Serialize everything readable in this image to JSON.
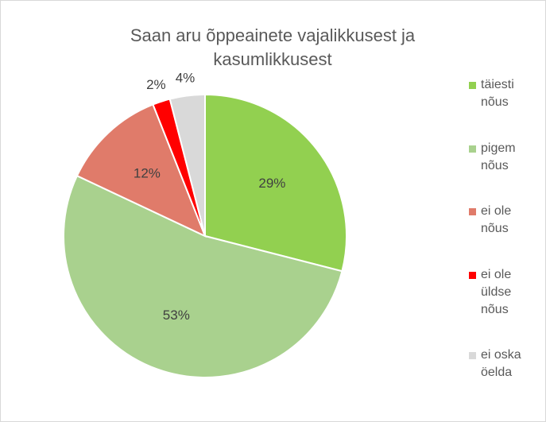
{
  "chart_data": {
    "type": "pie",
    "title": "Saan aru õppeainete vajalikkusest ja kasumlikkusest",
    "categories": [
      "täiesti nõus",
      "pigem nõus",
      "ei ole nõus",
      "ei ole üldse nõus",
      "ei oska öelda"
    ],
    "values": [
      29,
      53,
      12,
      2,
      4
    ],
    "value_labels": [
      "29%",
      "53%",
      "12%",
      "2%",
      "4%"
    ],
    "colors": [
      "#92d050",
      "#a9d18e",
      "#e07b6a",
      "#ff0000",
      "#d9d9d9"
    ],
    "legend": "right"
  }
}
